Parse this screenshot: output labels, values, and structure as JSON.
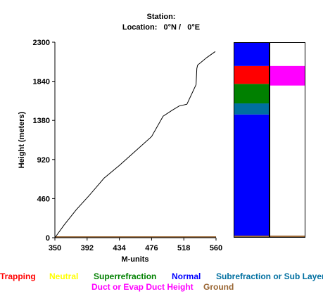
{
  "header": {
    "station_line": "Station:",
    "location_line": "Location:   0°N /   0°E"
  },
  "colors": {
    "trapping": "#ff0000",
    "neutral": "#ffff00",
    "superrefraction": "#008000",
    "normal": "#0000ff",
    "subrefraction": "#006fa0",
    "duct_height": "#ff00ff",
    "ground": "#996633",
    "profile_line": "#000000"
  },
  "chart_data": {
    "type": "line",
    "title": "",
    "xlabel": "M-units",
    "ylabel": "Height (meters)",
    "xlim": [
      350,
      560
    ],
    "ylim": [
      0,
      2300
    ],
    "x_ticks": [
      "350",
      "392",
      "434",
      "476",
      "518",
      "560"
    ],
    "y_ticks": [
      "0",
      "460",
      "920",
      "1380",
      "1840",
      "2300"
    ],
    "grid": false,
    "series": [
      {
        "points": [
          [
            350,
            0
          ],
          [
            362,
            150
          ],
          [
            378,
            330
          ],
          [
            395,
            500
          ],
          [
            414,
            700
          ],
          [
            434,
            850
          ],
          [
            455,
            1020
          ],
          [
            476,
            1190
          ],
          [
            491,
            1430
          ],
          [
            503,
            1500
          ],
          [
            512,
            1550
          ],
          [
            522,
            1570
          ],
          [
            534,
            1800
          ],
          [
            535,
            1990
          ],
          [
            536,
            2030
          ],
          [
            548,
            2120
          ],
          [
            559,
            2190
          ]
        ]
      }
    ],
    "ground_level": 10,
    "layer_bars": [
      {
        "column": "refractivity",
        "segments": [
          {
            "from": 0,
            "to": 1450,
            "class": "normal"
          },
          {
            "from": 1450,
            "to": 1580,
            "class": "subrefraction"
          },
          {
            "from": 1580,
            "to": 1810,
            "class": "superrefraction"
          },
          {
            "from": 1810,
            "to": 2020,
            "class": "trapping"
          },
          {
            "from": 2020,
            "to": 2300,
            "class": "normal"
          }
        ]
      },
      {
        "column": "duct",
        "segments": [
          {
            "from": 1790,
            "to": 2020,
            "class": "duct_height"
          }
        ]
      }
    ]
  },
  "legend": {
    "items": [
      {
        "label": "Trapping",
        "color": "#ff0000"
      },
      {
        "label": "Neutral",
        "color": "#ffff00"
      },
      {
        "label": "Superrefraction",
        "color": "#008000"
      },
      {
        "label": "Normal",
        "color": "#0000ff"
      },
      {
        "label": "Subrefraction or Sub Layer",
        "color": "#006fa0"
      },
      {
        "label": "Duct or Evap Duct Height",
        "color": "#ff00ff"
      },
      {
        "label": "Ground",
        "color": "#996633"
      }
    ]
  }
}
